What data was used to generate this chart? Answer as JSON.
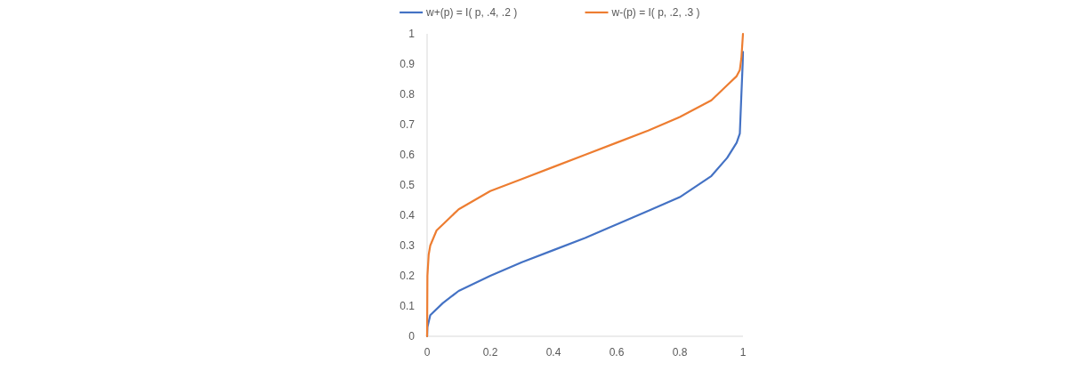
{
  "chart_data": {
    "type": "line",
    "x": [
      0,
      0.001,
      0.01,
      0.05,
      0.1,
      0.2,
      0.3,
      0.4,
      0.5,
      0.6,
      0.7,
      0.8,
      0.9,
      0.95,
      0.98,
      0.99,
      0.995,
      0.999,
      1
    ],
    "series": [
      {
        "name": "w+(p) = I( p, .4, .2 )",
        "color": "#4472c4",
        "values": [
          0,
          0.03,
          0.07,
          0.11,
          0.15,
          0.2,
          0.245,
          0.285,
          0.325,
          0.37,
          0.415,
          0.46,
          0.53,
          0.59,
          0.64,
          0.67,
          0.8,
          0.9,
          0.94
        ]
      },
      {
        "name": "w-(p) = I( p, .2, .3 )",
        "color": "#ed7d31",
        "x": [
          0,
          0.001,
          0.005,
          0.01,
          0.03,
          0.05,
          0.1,
          0.2,
          0.3,
          0.4,
          0.5,
          0.6,
          0.7,
          0.8,
          0.9,
          0.95,
          0.98,
          0.99,
          0.995,
          1
        ],
        "values": [
          0,
          0.2,
          0.27,
          0.3,
          0.35,
          0.37,
          0.42,
          0.48,
          0.52,
          0.56,
          0.6,
          0.64,
          0.68,
          0.725,
          0.78,
          0.83,
          0.86,
          0.88,
          0.92,
          1
        ]
      }
    ],
    "xlim": [
      0,
      1
    ],
    "ylim": [
      0,
      1
    ],
    "xticks": [
      0,
      0.2,
      0.4,
      0.6,
      0.8,
      1
    ],
    "yticks": [
      0,
      0.1,
      0.2,
      0.3,
      0.4,
      0.5,
      0.6,
      0.7,
      0.8,
      0.9,
      1
    ],
    "legend": "top",
    "grid": false
  }
}
